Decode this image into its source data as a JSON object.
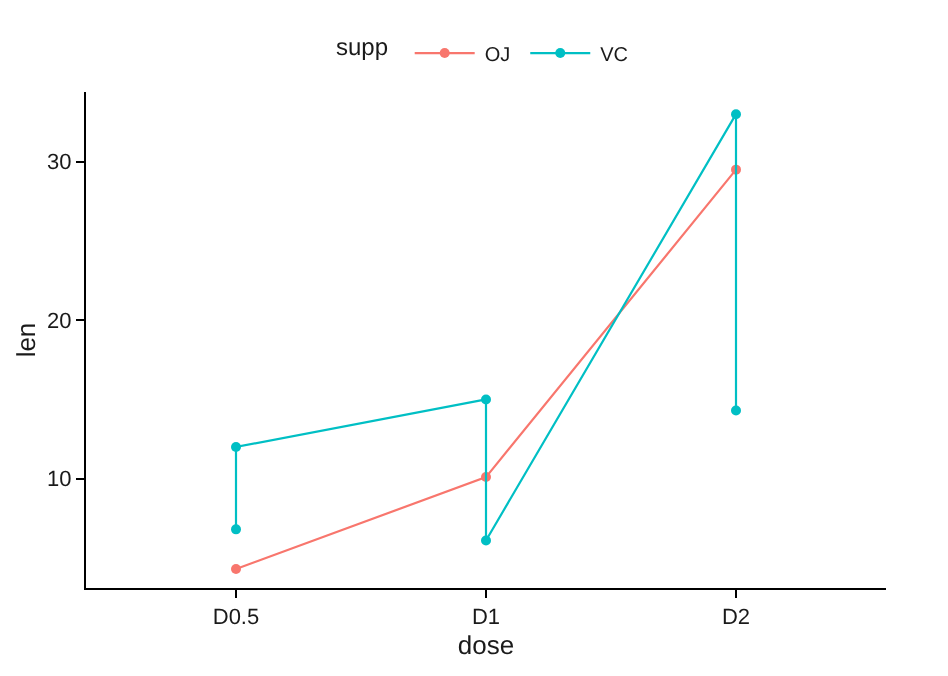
{
  "chart_data": {
    "type": "line",
    "xlabel": "dose",
    "ylabel": "len",
    "legend_title": "supp",
    "categories": [
      "D0.5",
      "D1",
      "D2"
    ],
    "series": [
      {
        "name": "OJ",
        "color": "#f8766d",
        "x": [
          "D0.5",
          "D1",
          "D2"
        ],
        "values": [
          4.3,
          10.1,
          29.5
        ]
      },
      {
        "name": "VC",
        "color": "#00bfc4",
        "x": [
          "D0.5",
          "D0.5",
          "D1",
          "D1",
          "D2",
          "D2"
        ],
        "values": [
          6.8,
          12.0,
          15.0,
          6.1,
          33.0,
          14.3
        ]
      }
    ],
    "ylim": [
      3.1,
      34.4
    ],
    "yticks": [
      10,
      20,
      30
    ],
    "grid": false,
    "legend": "top",
    "marker": "circle",
    "line_style": "solid"
  }
}
